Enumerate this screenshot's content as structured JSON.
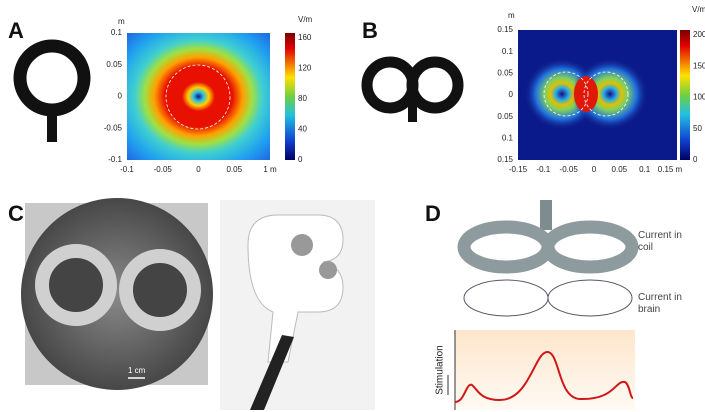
{
  "panels": {
    "a": {
      "label": "A",
      "y_unit": "m",
      "colorbar_unit": "V/m",
      "y_ticks": [
        "0.1",
        "0.05",
        "0",
        "-0.05",
        "-0.1"
      ],
      "x_ticks": [
        "-0.1",
        "-0.05",
        "0",
        "0.05",
        "1 m"
      ],
      "colorbar_ticks": [
        "160",
        "120",
        "80",
        "40",
        "0"
      ]
    },
    "b": {
      "label": "B",
      "y_unit": "m",
      "colorbar_unit": "V/m",
      "y_ticks": [
        "0.15",
        "0.1",
        "0.05",
        "0",
        "0.05",
        "0.1",
        "0.15"
      ],
      "x_ticks": [
        "-0.15",
        "-0.1",
        "-0.05",
        "0",
        "0.05",
        "0.1",
        "0.15 m"
      ],
      "colorbar_ticks": [
        "200",
        "150",
        "100",
        "50",
        "0"
      ]
    },
    "c": {
      "label": "C",
      "scale_bar": "1 cm"
    },
    "d": {
      "label": "D",
      "coil_label": "Current in coil",
      "brain_label": "Current in brain",
      "y_axis_label": "Stimulation"
    }
  }
}
